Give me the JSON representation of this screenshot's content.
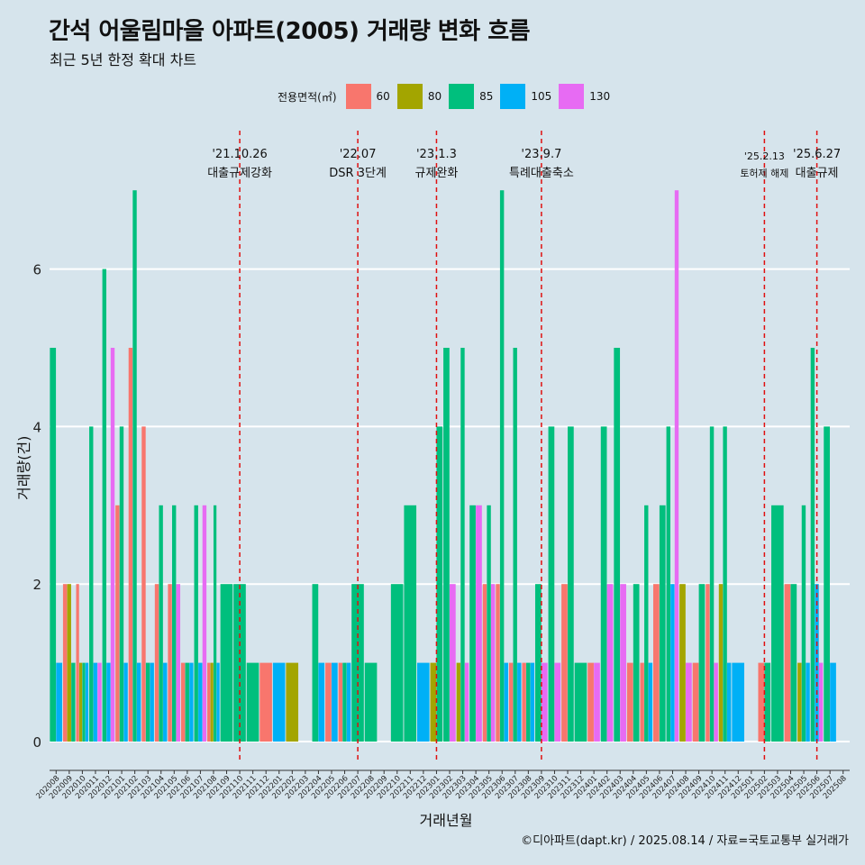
{
  "title": "간석 어울림마을 아파트(2005) 거래량 변화 흐름",
  "subtitle": "최근 5년 한정 확대 차트",
  "caption": "©디아파트(dapt.kr) / 2025.08.14 / 자료=국토교통부 실거래가",
  "colors": {
    "background": "#d6e4ec",
    "grid": "#ffffff",
    "event_line": "#e01010"
  },
  "chart_data": {
    "type": "bar",
    "xlabel": "거래년월",
    "ylabel": "거래량(건)",
    "ylim": [
      0,
      7
    ],
    "yticks": [
      0,
      2,
      4,
      6
    ],
    "legend": {
      "title": "전용면적(㎡)",
      "position": "top",
      "entries": [
        {
          "name": "60",
          "color": "#f8766d"
        },
        {
          "name": "80",
          "color": "#a3a500"
        },
        {
          "name": "85",
          "color": "#00bf7d"
        },
        {
          "name": "105",
          "color": "#00b0f6"
        },
        {
          "name": "130",
          "color": "#e76bf3"
        }
      ]
    },
    "categories": [
      "202008",
      "202009",
      "202010",
      "202011",
      "202012",
      "202101",
      "202102",
      "202103",
      "202104",
      "202105",
      "202106",
      "202107",
      "202108",
      "202109",
      "202110",
      "202111",
      "202112",
      "202201",
      "202202",
      "202203",
      "202204",
      "202205",
      "202206",
      "202207",
      "202208",
      "202209",
      "202210",
      "202211",
      "202212",
      "202301",
      "202302",
      "202303",
      "202304",
      "202305",
      "202306",
      "202307",
      "202308",
      "202309",
      "202310",
      "202311",
      "202312",
      "202401",
      "202402",
      "202403",
      "202404",
      "202405",
      "202406",
      "202407",
      "202408",
      "202409",
      "202410",
      "202411",
      "202412",
      "202501",
      "202502",
      "202503",
      "202504",
      "202505",
      "202506",
      "202507",
      "202508"
    ],
    "data": {
      "202008": [
        [
          "85",
          5
        ],
        [
          "105",
          1
        ]
      ],
      "202009": [
        [
          "60",
          2
        ],
        [
          "80",
          2
        ],
        [
          "85",
          1
        ]
      ],
      "202010": [
        [
          "60",
          2
        ],
        [
          "80",
          1
        ],
        [
          "85",
          1
        ],
        [
          "105",
          1
        ]
      ],
      "202011": [
        [
          "85",
          4
        ],
        [
          "105",
          1
        ],
        [
          "130",
          1
        ]
      ],
      "202012": [
        [
          "85",
          6
        ],
        [
          "105",
          1
        ],
        [
          "130",
          5
        ]
      ],
      "202101": [
        [
          "60",
          3
        ],
        [
          "85",
          4
        ],
        [
          "105",
          1
        ]
      ],
      "202102": [
        [
          "60",
          5
        ],
        [
          "85",
          7
        ],
        [
          "105",
          1
        ]
      ],
      "202103": [
        [
          "60",
          4
        ],
        [
          "85",
          1
        ],
        [
          "105",
          1
        ]
      ],
      "202104": [
        [
          "60",
          2
        ],
        [
          "85",
          3
        ],
        [
          "105",
          1
        ]
      ],
      "202105": [
        [
          "60",
          2
        ],
        [
          "85",
          3
        ],
        [
          "130",
          2
        ]
      ],
      "202106": [
        [
          "60",
          1
        ],
        [
          "85",
          1
        ],
        [
          "105",
          1
        ]
      ],
      "202107": [
        [
          "85",
          3
        ],
        [
          "105",
          1
        ],
        [
          "130",
          3
        ]
      ],
      "202108": [
        [
          "60",
          1
        ],
        [
          "80",
          1
        ],
        [
          "85",
          3
        ],
        [
          "105",
          1
        ]
      ],
      "202109": [
        [
          "85",
          2
        ]
      ],
      "202110": [
        [
          "85",
          2
        ]
      ],
      "202111": [
        [
          "85",
          1
        ]
      ],
      "202112": [
        [
          "60",
          1
        ]
      ],
      "202201": [
        [
          "105",
          1
        ]
      ],
      "202202": [
        [
          "80",
          1
        ]
      ],
      "202203": [],
      "202204": [
        [
          "85",
          2
        ],
        [
          "105",
          1
        ]
      ],
      "202205": [
        [
          "60",
          1
        ],
        [
          "105",
          1
        ]
      ],
      "202206": [
        [
          "60",
          1
        ],
        [
          "85",
          1
        ],
        [
          "105",
          1
        ]
      ],
      "202207": [
        [
          "85",
          2
        ]
      ],
      "202208": [
        [
          "85",
          1
        ]
      ],
      "202209": [],
      "202210": [
        [
          "85",
          2
        ]
      ],
      "202211": [
        [
          "85",
          3
        ]
      ],
      "202212": [
        [
          "105",
          1
        ]
      ],
      "202301": [
        [
          "80",
          1
        ],
        [
          "85",
          4
        ]
      ],
      "202302": [
        [
          "85",
          5
        ],
        [
          "130",
          2
        ]
      ],
      "202303": [
        [
          "80",
          1
        ],
        [
          "85",
          5
        ],
        [
          "130",
          1
        ]
      ],
      "202304": [
        [
          "85",
          3
        ],
        [
          "130",
          3
        ]
      ],
      "202305": [
        [
          "60",
          2
        ],
        [
          "85",
          3
        ],
        [
          "130",
          2
        ]
      ],
      "202306": [
        [
          "60",
          2
        ],
        [
          "85",
          7
        ],
        [
          "105",
          1
        ]
      ],
      "202307": [
        [
          "60",
          1
        ],
        [
          "85",
          5
        ],
        [
          "105",
          1
        ]
      ],
      "202308": [
        [
          "60",
          1
        ],
        [
          "85",
          1
        ],
        [
          "105",
          1
        ]
      ],
      "202309": [
        [
          "85",
          2
        ],
        [
          "130",
          1
        ]
      ],
      "202310": [
        [
          "85",
          4
        ],
        [
          "130",
          1
        ]
      ],
      "202311": [
        [
          "60",
          2
        ],
        [
          "85",
          4
        ]
      ],
      "202312": [
        [
          "85",
          1
        ]
      ],
      "202401": [
        [
          "60",
          1
        ],
        [
          "130",
          1
        ]
      ],
      "202402": [
        [
          "85",
          4
        ],
        [
          "130",
          2
        ]
      ],
      "202403": [
        [
          "85",
          5
        ],
        [
          "130",
          2
        ]
      ],
      "202404": [
        [
          "60",
          1
        ],
        [
          "85",
          2
        ]
      ],
      "202405": [
        [
          "60",
          1
        ],
        [
          "85",
          3
        ],
        [
          "105",
          1
        ]
      ],
      "202406": [
        [
          "60",
          2
        ],
        [
          "85",
          3
        ]
      ],
      "202407": [
        [
          "85",
          4
        ],
        [
          "105",
          2
        ],
        [
          "130",
          7
        ]
      ],
      "202408": [
        [
          "80",
          2
        ],
        [
          "130",
          1
        ]
      ],
      "202409": [
        [
          "60",
          1
        ],
        [
          "85",
          2
        ]
      ],
      "202410": [
        [
          "60",
          2
        ],
        [
          "85",
          4
        ],
        [
          "130",
          1
        ]
      ],
      "202411": [
        [
          "80",
          2
        ],
        [
          "85",
          4
        ],
        [
          "105",
          1
        ]
      ],
      "202412": [
        [
          "105",
          1
        ]
      ],
      "202501": [],
      "202502": [
        [
          "60",
          1
        ],
        [
          "85",
          1
        ]
      ],
      "202503": [
        [
          "85",
          3
        ]
      ],
      "202504": [
        [
          "60",
          2
        ],
        [
          "85",
          2
        ]
      ],
      "202505": [
        [
          "80",
          1
        ],
        [
          "85",
          3
        ],
        [
          "105",
          1
        ]
      ],
      "202506": [
        [
          "85",
          5
        ],
        [
          "105",
          2
        ],
        [
          "130",
          1
        ]
      ],
      "202507": [
        [
          "85",
          4
        ],
        [
          "105",
          1
        ]
      ],
      "202508": []
    },
    "events": [
      {
        "month": "202110",
        "date": "'21.10.26",
        "label": "대출규제강화"
      },
      {
        "month": "202207",
        "date": "'22.07",
        "label": "DSR 3단계"
      },
      {
        "month": "202301",
        "date": "'23.1.3",
        "label": "규제완화"
      },
      {
        "month": "202309",
        "date": "'23.9.7",
        "label": "특례대출축소"
      },
      {
        "month": "202502",
        "date": "'25.2.13",
        "label": "토허제 해제"
      },
      {
        "month": "202506",
        "date": "'25.6.27",
        "label": "대출규제"
      }
    ]
  }
}
